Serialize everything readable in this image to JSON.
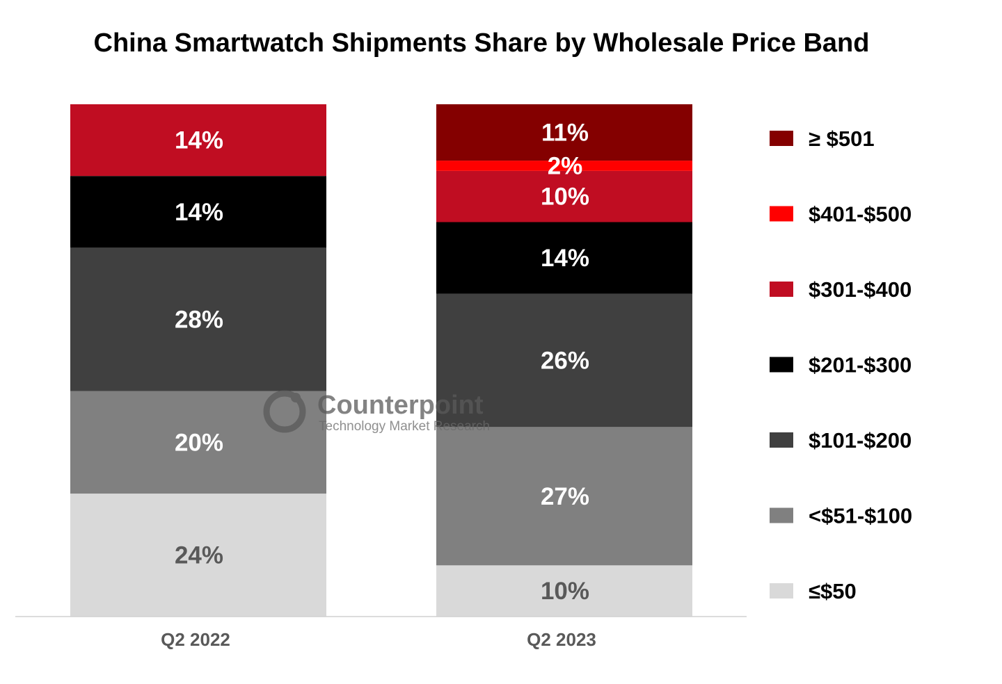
{
  "chart_data": {
    "type": "bar",
    "stacked": true,
    "title": "China Smartwatch Shipments Share by Wholesale Price Band",
    "categories": [
      "Q2 2022",
      "Q2 2023"
    ],
    "ylim": [
      0,
      100
    ],
    "unit": "%",
    "grid": false,
    "legend_position": "right",
    "series": [
      {
        "name": "≤$50",
        "values": [
          24,
          10
        ],
        "color": "#D9D9D9",
        "label_color": "#595959"
      },
      {
        "name": "<$51-$100",
        "values": [
          20,
          27
        ],
        "color": "#808080",
        "label_color": "#FFFFFF"
      },
      {
        "name": "$101-$200",
        "values": [
          28,
          26
        ],
        "color": "#404040",
        "label_color": "#FFFFFF"
      },
      {
        "name": "$201-$300",
        "values": [
          14,
          14
        ],
        "color": "#000000",
        "label_color": "#FFFFFF"
      },
      {
        "name": "$301-$400",
        "values": [
          14,
          10
        ],
        "color": "#C00D22",
        "label_color": "#FFFFFF"
      },
      {
        "name": "$401-$500",
        "values": [
          0,
          2
        ],
        "color": "#FF0000",
        "label_color": "#FFFFFF"
      },
      {
        "name": "≥ $501",
        "values": [
          0,
          11
        ],
        "color": "#840000",
        "label_color": "#FFFFFF"
      }
    ]
  },
  "watermark": {
    "brand": "Counterpoint",
    "tagline": "Technology Market Research"
  }
}
